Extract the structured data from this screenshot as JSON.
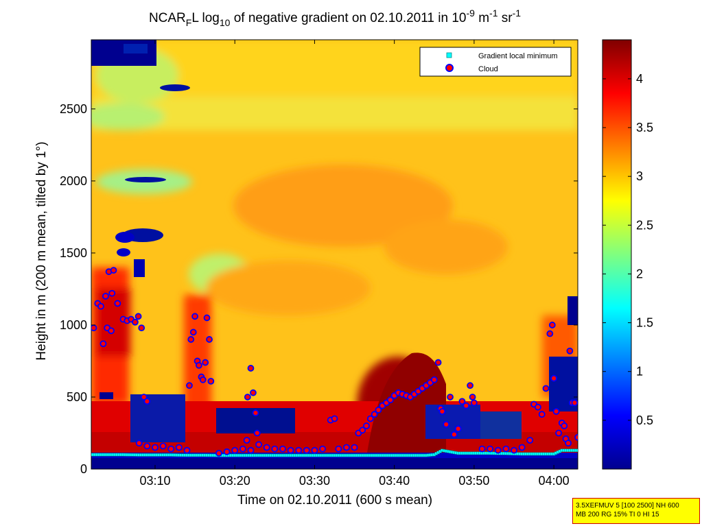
{
  "chart_data": {
    "type": "heatmap",
    "title": {
      "prefix": "NCAR",
      "sub_f": "F",
      "mid": "L log",
      "sub_10": "10",
      "rest": " of negative gradient on 02.10.2011 in 10",
      "sup_9": "-9",
      "unit_m": " m",
      "sup_1": "-1",
      "unit_sr": " sr",
      "sup_sr": "-1"
    },
    "xlabel": "Time on 02.10.2011 (600 s mean)",
    "ylabel": "Height in m (200 m mean, tilted by 1°)",
    "x_axis": {
      "unit": "minutes after 03:00",
      "range": [
        2,
        63
      ],
      "ticks": [
        {
          "value": 10,
          "label": "03:10"
        },
        {
          "value": 20,
          "label": "03:20"
        },
        {
          "value": 30,
          "label": "03:30"
        },
        {
          "value": 40,
          "label": "03:40"
        },
        {
          "value": 50,
          "label": "03:50"
        },
        {
          "value": 60,
          "label": "04:00"
        }
      ]
    },
    "y_axis": {
      "range": [
        0,
        2980
      ],
      "ticks": [
        {
          "value": 0,
          "label": "0"
        },
        {
          "value": 500,
          "label": "500"
        },
        {
          "value": 1000,
          "label": "1000"
        },
        {
          "value": 1500,
          "label": "1500"
        },
        {
          "value": 2000,
          "label": "2000"
        },
        {
          "value": 2500,
          "label": "2500"
        }
      ]
    },
    "colorbar": {
      "range": [
        0,
        4.4
      ],
      "ticks": [
        {
          "value": 0.5,
          "label": "0.5"
        },
        {
          "value": 1,
          "label": "1"
        },
        {
          "value": 1.5,
          "label": "1.5"
        },
        {
          "value": 2,
          "label": "2"
        },
        {
          "value": 2.5,
          "label": "2.5"
        },
        {
          "value": 3,
          "label": "3"
        },
        {
          "value": 3.5,
          "label": "3.5"
        },
        {
          "value": 4,
          "label": "4"
        }
      ]
    },
    "legend": {
      "placement": "top-right",
      "entries": [
        {
          "label": "Gradient local minimum",
          "marker": "square",
          "color": "#00ffff"
        },
        {
          "label": "Cloud",
          "marker": "circle",
          "color": "#ff0000",
          "edge": "#0000ff"
        }
      ]
    },
    "series": [
      {
        "name": "Gradient local minimum",
        "points": [
          [
            2,
            100
          ],
          [
            4,
            100
          ],
          [
            6,
            100
          ],
          [
            8,
            98
          ],
          [
            10,
            98
          ],
          [
            12,
            98
          ],
          [
            14,
            96
          ],
          [
            16,
            96
          ],
          [
            18,
            95
          ],
          [
            20,
            95
          ],
          [
            22,
            95
          ],
          [
            24,
            95
          ],
          [
            26,
            95
          ],
          [
            28,
            95
          ],
          [
            30,
            95
          ],
          [
            32,
            95
          ],
          [
            34,
            95
          ],
          [
            36,
            95
          ],
          [
            38,
            95
          ],
          [
            40,
            95
          ],
          [
            42,
            95
          ],
          [
            44,
            95
          ],
          [
            45,
            100
          ],
          [
            46,
            130
          ],
          [
            48,
            110
          ],
          [
            50,
            110
          ],
          [
            52,
            110
          ],
          [
            54,
            108
          ],
          [
            56,
            105
          ],
          [
            58,
            105
          ],
          [
            60,
            105
          ],
          [
            61,
            130
          ],
          [
            62,
            130
          ],
          [
            63,
            130
          ]
        ]
      },
      {
        "name": "Cloud",
        "points": [
          [
            2.3,
            980
          ],
          [
            2.8,
            1150
          ],
          [
            3.2,
            1130
          ],
          [
            3.5,
            870
          ],
          [
            3.8,
            1200
          ],
          [
            4.0,
            980
          ],
          [
            4.2,
            1370
          ],
          [
            4.5,
            960
          ],
          [
            4.6,
            1220
          ],
          [
            4.8,
            1380
          ],
          [
            5.3,
            1150
          ],
          [
            6.0,
            1040
          ],
          [
            6.5,
            1030
          ],
          [
            7.0,
            1040
          ],
          [
            7.5,
            1020
          ],
          [
            7.9,
            1060
          ],
          [
            8.3,
            980
          ],
          [
            8.6,
            500
          ],
          [
            9.0,
            470
          ],
          [
            8.0,
            180
          ],
          [
            9.0,
            160
          ],
          [
            10,
            150
          ],
          [
            11,
            160
          ],
          [
            12,
            140
          ],
          [
            13,
            150
          ],
          [
            14,
            130
          ],
          [
            14.3,
            580
          ],
          [
            14.5,
            900
          ],
          [
            14.8,
            950
          ],
          [
            15,
            1060
          ],
          [
            15.3,
            750
          ],
          [
            15.5,
            720
          ],
          [
            15.8,
            640
          ],
          [
            16,
            620
          ],
          [
            16.3,
            740
          ],
          [
            16.5,
            1050
          ],
          [
            16.8,
            900
          ],
          [
            17,
            610
          ],
          [
            18,
            110
          ],
          [
            19,
            120
          ],
          [
            20,
            130
          ],
          [
            21,
            140
          ],
          [
            21.5,
            200
          ],
          [
            22,
            130
          ],
          [
            21.6,
            500
          ],
          [
            22,
            700
          ],
          [
            22.3,
            530
          ],
          [
            22.6,
            390
          ],
          [
            22.8,
            250
          ],
          [
            23,
            170
          ],
          [
            24,
            150
          ],
          [
            25,
            140
          ],
          [
            26,
            140
          ],
          [
            27,
            130
          ],
          [
            28,
            130
          ],
          [
            29,
            130
          ],
          [
            30,
            130
          ],
          [
            31,
            140
          ],
          [
            32,
            340
          ],
          [
            32.5,
            350
          ],
          [
            33,
            140
          ],
          [
            34,
            150
          ],
          [
            35,
            150
          ],
          [
            35.5,
            250
          ],
          [
            36,
            270
          ],
          [
            36.5,
            300
          ],
          [
            37,
            350
          ],
          [
            37.5,
            380
          ],
          [
            38,
            410
          ],
          [
            38.5,
            440
          ],
          [
            39,
            460
          ],
          [
            39.5,
            480
          ],
          [
            40,
            510
          ],
          [
            40.5,
            530
          ],
          [
            41,
            520
          ],
          [
            41.5,
            510
          ],
          [
            42,
            500
          ],
          [
            42.5,
            520
          ],
          [
            43,
            540
          ],
          [
            43.5,
            560
          ],
          [
            44,
            580
          ],
          [
            44.5,
            600
          ],
          [
            45,
            620
          ],
          [
            45.5,
            740
          ],
          [
            45.8,
            420
          ],
          [
            46,
            400
          ],
          [
            46.5,
            310
          ],
          [
            47,
            500
          ],
          [
            47.5,
            240
          ],
          [
            48,
            280
          ],
          [
            48.5,
            470
          ],
          [
            49,
            440
          ],
          [
            49.5,
            580
          ],
          [
            49.8,
            500
          ],
          [
            50,
            460
          ],
          [
            51,
            140
          ],
          [
            52,
            140
          ],
          [
            53,
            130
          ],
          [
            54,
            140
          ],
          [
            55,
            130
          ],
          [
            56,
            150
          ],
          [
            57,
            200
          ],
          [
            57.5,
            450
          ],
          [
            58,
            430
          ],
          [
            58.5,
            380
          ],
          [
            59,
            560
          ],
          [
            59.5,
            940
          ],
          [
            59.8,
            1000
          ],
          [
            60,
            630
          ],
          [
            60.3,
            400
          ],
          [
            60.6,
            250
          ],
          [
            61,
            320
          ],
          [
            61.3,
            300
          ],
          [
            61.5,
            210
          ],
          [
            61.8,
            180
          ],
          [
            62.0,
            820
          ],
          [
            62.3,
            460
          ],
          [
            62.6,
            460
          ],
          [
            63,
            220
          ]
        ]
      }
    ]
  },
  "info_box": {
    "line1": "3.5XEFMUV 5 [100 2500] NH 600",
    "line2": "MB 200 RG 15% TI 0 HI 15"
  }
}
